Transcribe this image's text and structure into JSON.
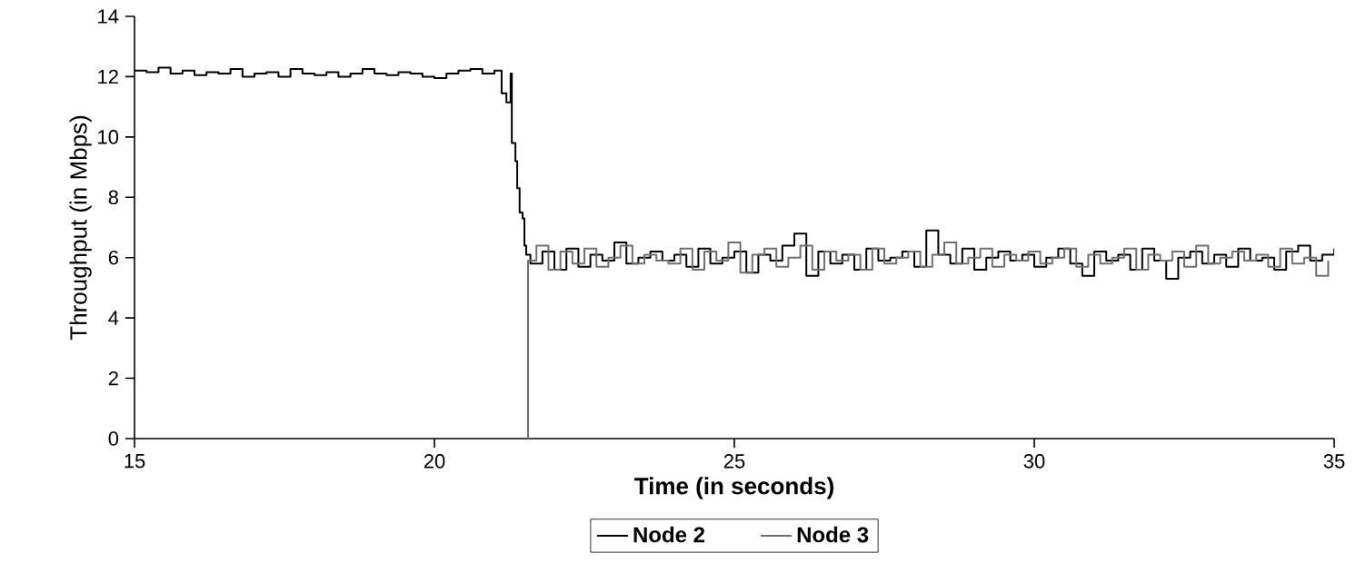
{
  "chart_data": {
    "type": "step",
    "xlabel": "Time (in seconds)",
    "ylabel": "Throughput (in Mbps)",
    "xlim": [
      15,
      35
    ],
    "ylim": [
      0,
      14
    ],
    "xticks": [
      15,
      20,
      25,
      30,
      35
    ],
    "yticks": [
      0,
      2,
      4,
      6,
      8,
      10,
      12,
      14
    ],
    "grid": false,
    "legend": "bottom",
    "series": [
      {
        "name": "Node 2",
        "color": "#000000",
        "x": [
          15.0,
          15.2,
          15.4,
          15.6,
          15.8,
          16.0,
          16.2,
          16.4,
          16.6,
          16.8,
          17.0,
          17.2,
          17.4,
          17.6,
          17.8,
          18.0,
          18.2,
          18.4,
          18.6,
          18.8,
          19.0,
          19.2,
          19.4,
          19.6,
          19.8,
          20.0,
          20.2,
          20.4,
          20.6,
          20.8,
          21.0,
          21.12,
          21.2,
          21.27,
          21.29,
          21.35,
          21.38,
          21.42,
          21.47,
          21.5,
          21.53,
          21.6,
          21.8,
          22.0,
          22.2,
          22.4,
          22.6,
          22.8,
          23.0,
          23.2,
          23.4,
          23.6,
          23.8,
          24.0,
          24.2,
          24.4,
          24.6,
          24.8,
          25.0,
          25.2,
          25.4,
          25.6,
          25.8,
          26.0,
          26.2,
          26.4,
          26.6,
          26.8,
          27.0,
          27.2,
          27.4,
          27.6,
          27.8,
          28.0,
          28.2,
          28.4,
          28.6,
          28.8,
          29.0,
          29.2,
          29.4,
          29.6,
          29.8,
          30.0,
          30.2,
          30.4,
          30.6,
          30.8,
          31.0,
          31.2,
          31.4,
          31.6,
          31.8,
          32.0,
          32.2,
          32.4,
          32.6,
          32.8,
          33.0,
          33.2,
          33.4,
          33.6,
          33.8,
          34.0,
          34.2,
          34.4,
          34.6,
          34.8,
          35.0
        ],
        "values": [
          12.2,
          12.15,
          12.3,
          12.1,
          12.2,
          12.05,
          12.15,
          12.1,
          12.25,
          12.0,
          12.1,
          12.15,
          12.0,
          12.25,
          12.1,
          12.05,
          12.15,
          12.0,
          12.1,
          12.25,
          12.1,
          12.05,
          12.15,
          12.1,
          12.0,
          11.95,
          12.1,
          12.2,
          12.25,
          12.1,
          12.2,
          11.45,
          11.15,
          12.1,
          9.8,
          9.2,
          8.3,
          7.5,
          7.3,
          6.4,
          6.1,
          5.8,
          6.2,
          5.6,
          6.3,
          5.7,
          6.1,
          5.9,
          6.5,
          5.8,
          6.0,
          6.2,
          5.9,
          6.1,
          5.7,
          6.3,
          5.8,
          6.0,
          6.2,
          5.5,
          6.1,
          5.9,
          6.4,
          6.8,
          5.4,
          6.2,
          5.8,
          6.1,
          5.6,
          6.3,
          5.9,
          6.0,
          6.2,
          5.7,
          6.9,
          6.1,
          5.8,
          6.3,
          5.6,
          6.0,
          6.2,
          5.9,
          6.1,
          5.7,
          6.0,
          6.3,
          5.8,
          5.4,
          6.2,
          5.9,
          6.1,
          5.6,
          6.3,
          5.9,
          5.3,
          6.0,
          6.2,
          5.8,
          6.1,
          5.7,
          6.3,
          5.9,
          6.0,
          5.6,
          6.2,
          6.4,
          5.9,
          6.1,
          6.3
        ]
      },
      {
        "name": "Node 3",
        "color": "#707070",
        "x": [
          21.55,
          21.56,
          21.7,
          21.9,
          22.1,
          22.3,
          22.5,
          22.7,
          22.9,
          23.1,
          23.3,
          23.5,
          23.7,
          23.9,
          24.1,
          24.3,
          24.5,
          24.7,
          24.9,
          25.1,
          25.3,
          25.5,
          25.7,
          25.9,
          26.1,
          26.3,
          26.5,
          26.7,
          26.9,
          27.1,
          27.3,
          27.5,
          27.7,
          27.9,
          28.1,
          28.3,
          28.5,
          28.7,
          28.9,
          29.1,
          29.3,
          29.5,
          29.7,
          29.9,
          30.1,
          30.3,
          30.5,
          30.7,
          30.9,
          31.1,
          31.3,
          31.5,
          31.7,
          31.9,
          32.1,
          32.3,
          32.5,
          32.7,
          32.9,
          33.1,
          33.3,
          33.5,
          33.7,
          33.9,
          34.1,
          34.3,
          34.5,
          34.7,
          34.9
        ],
        "values": [
          0,
          5.9,
          6.4,
          5.6,
          6.2,
          5.8,
          6.3,
          5.7,
          6.0,
          6.4,
          5.8,
          6.1,
          5.9,
          5.8,
          6.3,
          5.6,
          6.2,
          5.9,
          6.5,
          5.5,
          6.1,
          6.3,
          5.7,
          6.0,
          6.4,
          5.6,
          6.2,
          5.9,
          6.1,
          5.6,
          6.3,
          5.8,
          6.0,
          6.2,
          5.7,
          6.1,
          6.5,
          5.8,
          6.0,
          6.3,
          5.7,
          6.1,
          5.9,
          6.2,
          5.8,
          6.0,
          6.3,
          5.7,
          6.1,
          5.8,
          6.0,
          6.3,
          5.6,
          6.1,
          5.9,
          6.2,
          5.7,
          6.4,
          5.8,
          6.0,
          6.2,
          5.9,
          6.1,
          5.7,
          6.3,
          5.8,
          6.0,
          5.4,
          5.9
        ]
      }
    ]
  }
}
